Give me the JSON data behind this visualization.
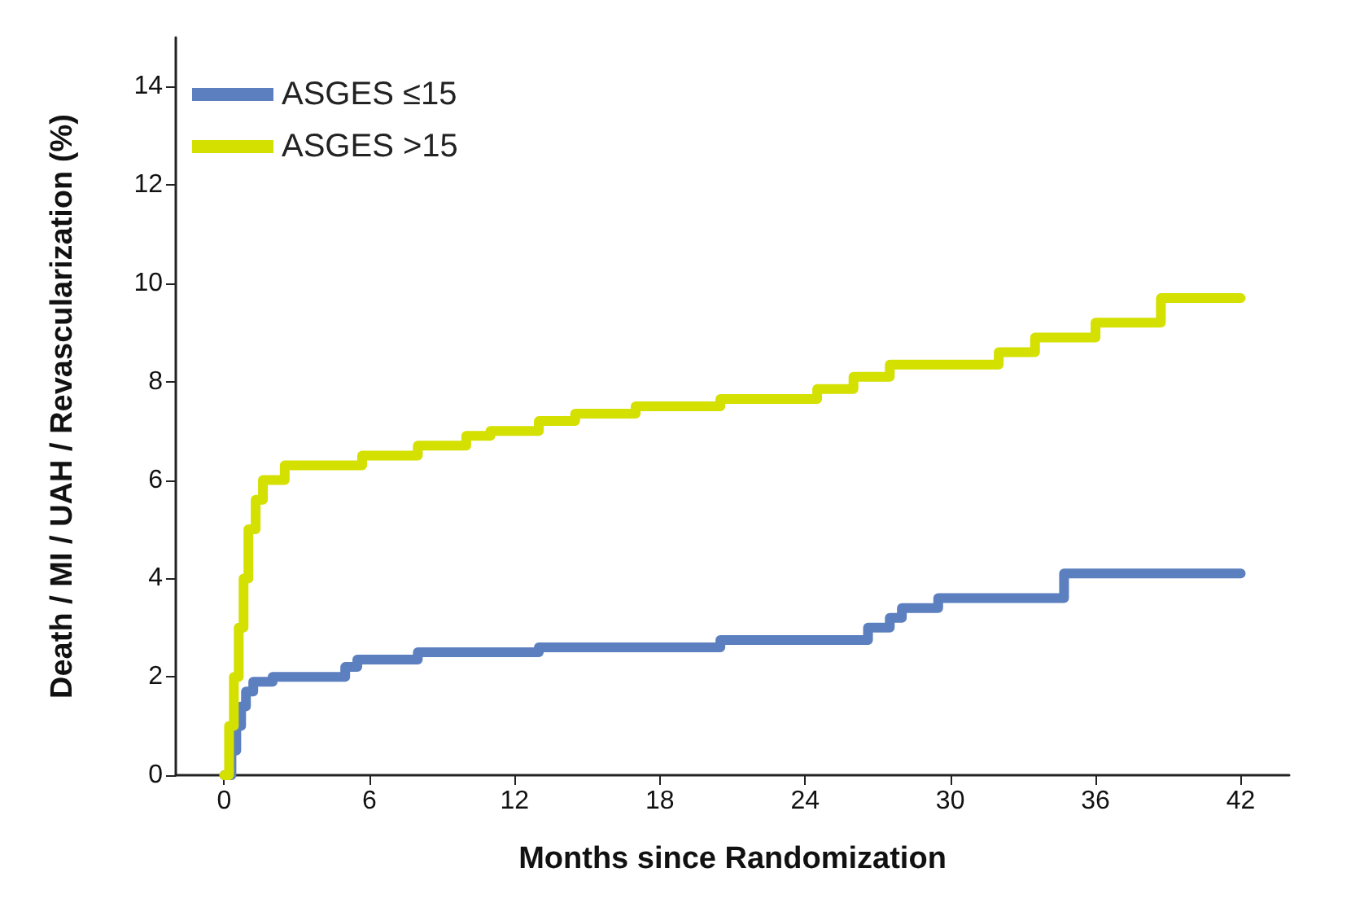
{
  "chart_data": {
    "type": "step",
    "xlabel": "Months since Randomization",
    "ylabel": "Death / MI / UAH / Revascularization (%)",
    "xlim": [
      -2,
      44
    ],
    "xticks": [
      0,
      6,
      12,
      18,
      24,
      30,
      36,
      42
    ],
    "ylim": [
      0,
      15
    ],
    "yticks": [
      0,
      2,
      4,
      6,
      8,
      10,
      12,
      14
    ],
    "grid": false,
    "legend": "top left",
    "marker": "none",
    "line_style": "solid",
    "series": [
      {
        "name": "ASGES ≤15",
        "color": "#5b7fbf",
        "x": [
          0,
          0.3,
          0.5,
          0.7,
          0.9,
          1.2,
          2,
          5,
          5.5,
          6,
          8,
          13,
          20.5,
          26.6,
          27.5,
          28,
          29.5,
          34.7,
          42
        ],
        "values": [
          0,
          0.5,
          1.0,
          1.4,
          1.7,
          1.9,
          2.0,
          2.2,
          2.35,
          2.35,
          2.5,
          2.6,
          2.75,
          3.0,
          3.2,
          3.4,
          3.6,
          4.1,
          4.1
        ]
      },
      {
        "name": "ASGES >15",
        "color": "#d4e000",
        "x": [
          0,
          0.2,
          0.4,
          0.6,
          0.8,
          1,
          1.3,
          1.6,
          2.5,
          5.7,
          8,
          10,
          11,
          13,
          14.5,
          17,
          20.5,
          24.5,
          26,
          27.5,
          32,
          33.5,
          36,
          38.7,
          42
        ],
        "values": [
          0,
          1.0,
          2.0,
          3.0,
          4.0,
          5.0,
          5.6,
          6.0,
          6.3,
          6.5,
          6.7,
          6.9,
          7.0,
          7.2,
          7.35,
          7.5,
          7.65,
          7.85,
          8.1,
          8.35,
          8.6,
          8.9,
          9.2,
          9.7,
          9.7
        ]
      }
    ]
  }
}
